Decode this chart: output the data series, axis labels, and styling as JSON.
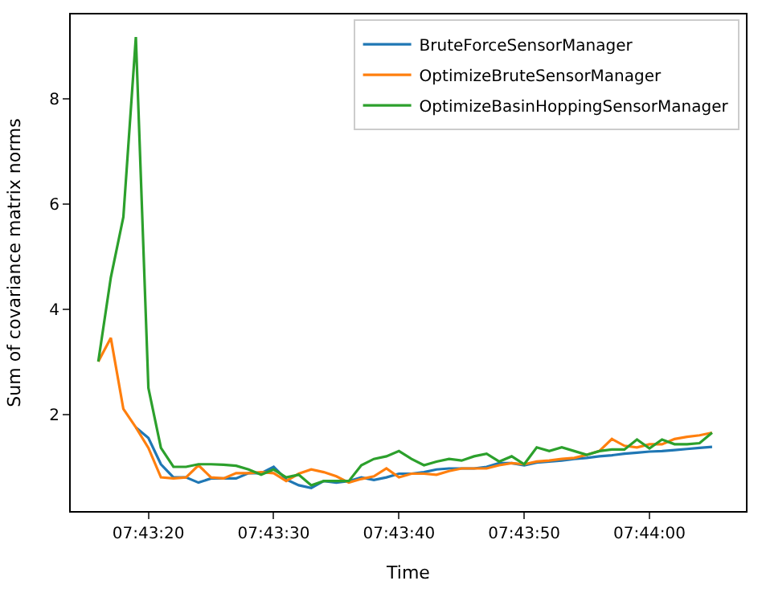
{
  "chart_data": {
    "type": "line",
    "xlabel": "Time",
    "ylabel": "Sum of covariance matrix norms",
    "x": [
      7.721111,
      7.721389,
      7.721667,
      7.721944,
      7.722222,
      7.7225,
      7.722778,
      7.723056,
      7.723333,
      7.723611,
      7.723889,
      7.724167,
      7.724444,
      7.724722,
      7.725,
      7.725278,
      7.725556,
      7.725833,
      7.726111,
      7.726389,
      7.726667,
      7.726944,
      7.727222,
      7.7275,
      7.727778,
      7.728056,
      7.728333,
      7.728611,
      7.728889,
      7.729167,
      7.729444,
      7.729722,
      7.73,
      7.730278,
      7.730556,
      7.730833,
      7.731111,
      7.731389,
      7.731667,
      7.731944,
      7.732222,
      7.7325,
      7.732778,
      7.733056,
      7.733333,
      7.733611,
      7.733889,
      7.734167,
      7.734444,
      7.734722
    ],
    "series": [
      {
        "name": "BruteForceSensorManager",
        "color": "#1f77b4",
        "values": [
          null,
          null,
          null,
          1.75,
          1.55,
          1.05,
          0.8,
          0.8,
          0.7,
          0.78,
          0.78,
          0.78,
          0.88,
          0.88,
          1.0,
          0.76,
          0.65,
          0.6,
          0.73,
          0.7,
          0.73,
          0.8,
          0.75,
          0.8,
          0.87,
          0.87,
          0.9,
          0.95,
          0.97,
          0.97,
          0.97,
          1.0,
          1.07,
          1.07,
          1.03,
          1.08,
          1.1,
          1.12,
          1.15,
          1.17,
          1.2,
          1.22,
          1.25,
          1.27,
          1.29,
          1.3,
          1.32,
          1.34,
          1.36,
          1.38
        ]
      },
      {
        "name": "OptimizeBruteSensorManager",
        "color": "#ff7f0e",
        "values": [
          3.0,
          3.45,
          2.1,
          1.75,
          1.36,
          0.8,
          0.78,
          0.8,
          1.03,
          0.8,
          0.78,
          0.88,
          0.88,
          0.9,
          0.88,
          0.73,
          0.87,
          0.95,
          0.9,
          0.82,
          0.7,
          0.77,
          0.82,
          0.97,
          0.8,
          0.87,
          0.87,
          0.85,
          0.92,
          0.97,
          0.97,
          0.97,
          1.03,
          1.07,
          1.05,
          1.1,
          1.12,
          1.15,
          1.17,
          1.23,
          1.3,
          1.53,
          1.4,
          1.37,
          1.43,
          1.43,
          1.53,
          1.57,
          1.6,
          1.65
        ]
      },
      {
        "name": "OptimizeBasinHoppingSensorManager",
        "color": "#2ca02c",
        "values": [
          3.0,
          4.6,
          5.75,
          9.17,
          2.5,
          1.36,
          1.0,
          1.0,
          1.05,
          1.05,
          1.04,
          1.02,
          0.95,
          0.85,
          0.95,
          0.8,
          0.85,
          0.65,
          0.73,
          0.73,
          0.73,
          1.03,
          1.15,
          1.2,
          1.3,
          1.15,
          1.03,
          1.1,
          1.15,
          1.12,
          1.2,
          1.25,
          1.1,
          1.2,
          1.05,
          1.37,
          1.3,
          1.37,
          1.3,
          1.23,
          1.3,
          1.33,
          1.33,
          1.52,
          1.35,
          1.52,
          1.43,
          1.43,
          1.45,
          1.65
        ]
      }
    ],
    "xlim": [
      7.7205,
      7.735472
    ],
    "xticks": [
      {
        "value": 7.722222,
        "label": "07:43:20"
      },
      {
        "value": 7.725,
        "label": "07:43:30"
      },
      {
        "value": 7.727778,
        "label": "07:43:40"
      },
      {
        "value": 7.730556,
        "label": "07:43:50"
      },
      {
        "value": 7.733333,
        "label": "07:44:00"
      }
    ],
    "ylim": [
      0.16,
      9.6
    ],
    "yticks": [
      2,
      4,
      6,
      8
    ],
    "legend": "top right",
    "marker": "none",
    "line_style": "solid"
  }
}
